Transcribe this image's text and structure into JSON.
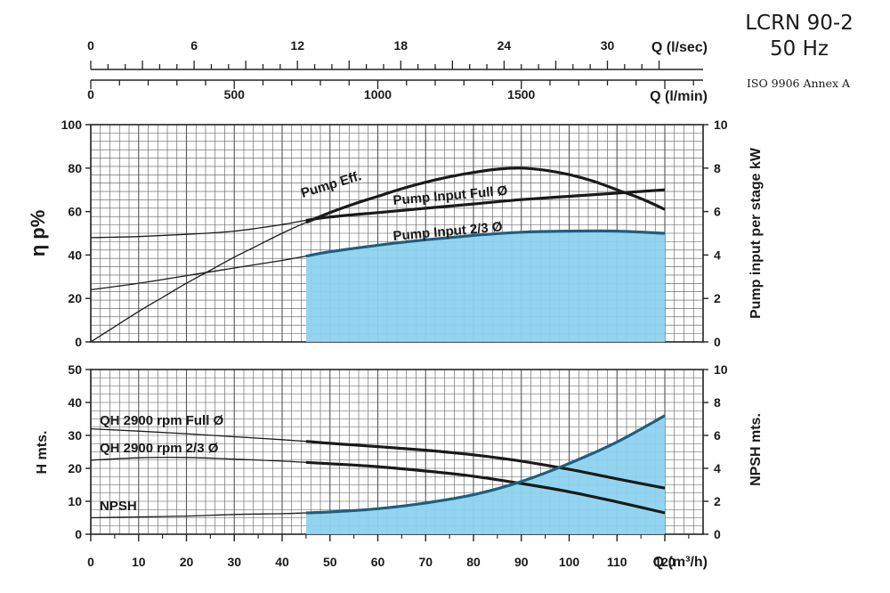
{
  "header": {
    "model": "LCRN 90-2",
    "frequency": "50 Hz",
    "standard": "ISO 9906 Annex A"
  },
  "colors": {
    "fill": "#8dd3f0",
    "fill_edge": "#1f5f7d",
    "curve": "#1a1a1a",
    "grid": "#555555"
  },
  "top_axes": {
    "ls": {
      "label": "Q (l/sec)",
      "ticks": [
        "0",
        "6",
        "12",
        "18",
        "24",
        "30"
      ]
    },
    "lm": {
      "label": "Q (l/min)",
      "ticks": [
        "0",
        "500",
        "1000",
        "1500"
      ]
    }
  },
  "chart_data": [
    {
      "type": "line",
      "xlim": [
        0,
        120
      ],
      "ylim": [
        0,
        100
      ],
      "y2lim": [
        0,
        10
      ],
      "ylabel": "η p%",
      "y2label": "Pump input per stage kW",
      "yticks": [
        "0",
        "20",
        "40",
        "60",
        "80",
        "100"
      ],
      "y2ticks": [
        "0",
        "2",
        "4",
        "6",
        "8",
        "10"
      ],
      "operating_range": [
        45,
        120
      ],
      "series": [
        {
          "name": "Pump Eff.",
          "axis": "left",
          "x": [
            0,
            5,
            10,
            15,
            20,
            25,
            30,
            35,
            40,
            45,
            50,
            55,
            60,
            65,
            70,
            75,
            80,
            85,
            90,
            95,
            100,
            105,
            110,
            115,
            120
          ],
          "y": [
            0,
            7,
            14,
            20.5,
            27,
            33,
            39,
            44.5,
            50,
            55,
            59.5,
            63.5,
            67,
            70.5,
            73.5,
            76,
            78,
            79.5,
            80,
            79,
            77,
            74,
            70,
            66,
            61
          ]
        },
        {
          "name": "Pump Input Full Ø",
          "axis": "right",
          "x": [
            0,
            10,
            20,
            30,
            40,
            45,
            50,
            60,
            70,
            80,
            90,
            100,
            110,
            120
          ],
          "y": [
            4.8,
            4.85,
            4.95,
            5.1,
            5.4,
            5.6,
            5.75,
            5.95,
            6.15,
            6.35,
            6.55,
            6.7,
            6.85,
            7.0
          ]
        },
        {
          "name": "Pump Input 2/3 Ø",
          "axis": "right",
          "fill": true,
          "x": [
            0,
            10,
            20,
            30,
            40,
            45,
            50,
            60,
            70,
            80,
            90,
            100,
            110,
            120
          ],
          "y": [
            2.4,
            2.7,
            3.05,
            3.4,
            3.75,
            3.95,
            4.15,
            4.45,
            4.7,
            4.9,
            5.05,
            5.1,
            5.1,
            5.0
          ]
        }
      ],
      "labels": [
        "Pump Eff.",
        "Pump Input Full Ø",
        "Pump Input 2/3 Ø"
      ]
    },
    {
      "type": "line",
      "xlim": [
        0,
        120
      ],
      "ylim": [
        0,
        50
      ],
      "y2lim": [
        0,
        10
      ],
      "xlabel": "Q (m³/h)",
      "ylabel": "H mts.",
      "y2label": "NPSH mts.",
      "xticks": [
        "0",
        "10",
        "20",
        "30",
        "40",
        "50",
        "60",
        "70",
        "80",
        "90",
        "100",
        "110",
        "120"
      ],
      "yticks": [
        "0",
        "10",
        "20",
        "30",
        "40",
        "50"
      ],
      "y2ticks": [
        "0",
        "2",
        "4",
        "6",
        "8",
        "10"
      ],
      "operating_range": [
        45,
        120
      ],
      "series": [
        {
          "name": "QH 2900 rpm Full Ø",
          "axis": "left",
          "x": [
            0,
            10,
            20,
            30,
            40,
            45,
            50,
            60,
            70,
            80,
            90,
            100,
            110,
            120
          ],
          "y": [
            32,
            31.3,
            30.5,
            29.6,
            28.7,
            28.2,
            27.6,
            26.6,
            25.5,
            24.1,
            22.2,
            19.7,
            16.8,
            14
          ]
        },
        {
          "name": "QH 2900 rpm 2/3 Ø",
          "axis": "left",
          "x": [
            0,
            10,
            20,
            30,
            40,
            45,
            50,
            60,
            70,
            80,
            90,
            100,
            110,
            120
          ],
          "y": [
            22.5,
            23.2,
            23.3,
            22.8,
            22.2,
            21.8,
            21.4,
            20.5,
            19.2,
            17.6,
            15.4,
            12.9,
            9.8,
            6.5
          ]
        },
        {
          "name": "NPSH",
          "axis": "right",
          "fill": true,
          "x": [
            0,
            10,
            20,
            30,
            40,
            45,
            50,
            60,
            70,
            80,
            90,
            100,
            110,
            120
          ],
          "y": [
            1.0,
            1.05,
            1.1,
            1.2,
            1.25,
            1.3,
            1.35,
            1.55,
            1.9,
            2.4,
            3.2,
            4.3,
            5.6,
            7.2
          ]
        }
      ],
      "labels": [
        "QH 2900 rpm Full Ø",
        "QH 2900 rpm 2/3 Ø",
        "NPSH"
      ]
    }
  ]
}
